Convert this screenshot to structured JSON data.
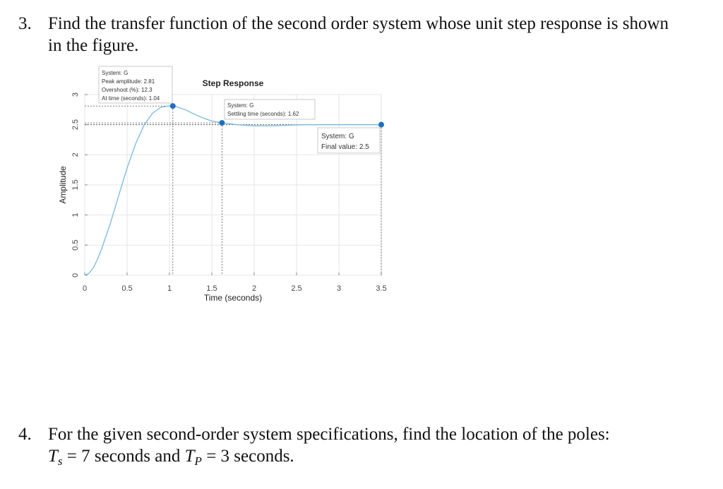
{
  "q3": {
    "number": "3.",
    "line1": "Find the transfer function of the second order system whose unit step response is shown",
    "line2": "in the figure."
  },
  "q4": {
    "number": "4.",
    "line1": "For the given second-order system specifications, find the location of the poles:",
    "ts_symbol": "T",
    "ts_sub": "s",
    "ts_rest": " = 7 seconds and ",
    "tp_symbol": "T",
    "tp_sub": "P",
    "tp_rest": " = 3 seconds."
  },
  "chart_data": {
    "type": "line",
    "title": "Step Response",
    "xlabel": "Time (seconds)",
    "ylabel": "Amplitude",
    "xlim": [
      0,
      3.5
    ],
    "ylim": [
      0,
      3
    ],
    "xticks": [
      "0",
      "0.5",
      "1",
      "1.5",
      "2",
      "2.5",
      "3",
      "3.5"
    ],
    "yticks": [
      "0",
      "0.5",
      "1",
      "1.5",
      "2",
      "2.5",
      "3"
    ],
    "grid": true,
    "series": [
      {
        "color": "#7ab8e0",
        "x": [
          0,
          0.05,
          0.1,
          0.15,
          0.2,
          0.3,
          0.4,
          0.5,
          0.6,
          0.7,
          0.8,
          0.9,
          1.0,
          1.04,
          1.1,
          1.2,
          1.3,
          1.4,
          1.5,
          1.62,
          1.8,
          2.0,
          2.2,
          2.4,
          2.6,
          2.8,
          3.0,
          3.2,
          3.5
        ],
        "y": [
          0,
          0.03,
          0.12,
          0.26,
          0.44,
          0.85,
          1.32,
          1.78,
          2.18,
          2.49,
          2.69,
          2.79,
          2.81,
          2.81,
          2.79,
          2.74,
          2.67,
          2.61,
          2.56,
          2.53,
          2.5,
          2.48,
          2.48,
          2.49,
          2.5,
          2.5,
          2.5,
          2.5,
          2.5
        ]
      }
    ],
    "markers": [
      {
        "x": 1.04,
        "y": 2.81
      },
      {
        "x": 1.62,
        "y": 2.53
      },
      {
        "x": 3.5,
        "y": 2.5
      }
    ],
    "annotations": {
      "peak": {
        "line1": "System: G",
        "line2": "Peak amplitude: 2.81",
        "line3": "Overshoot (%): 12.3",
        "line4": "At time (seconds): 1.04"
      },
      "settling": {
        "line1": "System: G",
        "line2": "Settling time (seconds): 1.62"
      },
      "final": {
        "line1": "System: G",
        "line2": "Final value: 2.5"
      }
    },
    "line_color": "#7ab8e0",
    "marker_color": "#1f6fc0"
  }
}
